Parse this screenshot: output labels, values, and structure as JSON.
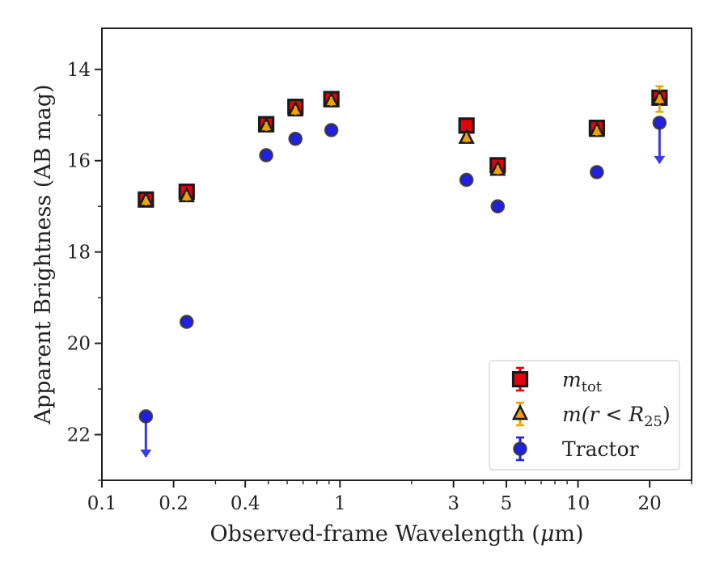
{
  "chart_data": {
    "type": "scatter",
    "xlabel": "Observed-frame Wavelength (μm)",
    "xlabel_parts": {
      "before": "Observed-frame Wavelength (",
      "mu": "μ",
      "after": "m)"
    },
    "ylabel": "Apparent Brightness (AB mag)",
    "xscale": "log",
    "xlim": [
      0.1,
      30
    ],
    "ylim": [
      23.0,
      13.1
    ],
    "y_inverted": true,
    "grid": false,
    "legend_position": "lower right",
    "x_ticks": [
      {
        "value": 0.1,
        "label": "0.1"
      },
      {
        "value": 0.2,
        "label": "0.2"
      },
      {
        "value": 0.4,
        "label": "0.4"
      },
      {
        "value": 1,
        "label": "1"
      },
      {
        "value": 3,
        "label": "3"
      },
      {
        "value": 5,
        "label": "5"
      },
      {
        "value": 10,
        "label": "10"
      },
      {
        "value": 20,
        "label": "20"
      }
    ],
    "y_ticks": [
      {
        "value": 14,
        "label": "14"
      },
      {
        "value": 16,
        "label": "16"
      },
      {
        "value": 18,
        "label": "18"
      },
      {
        "value": 20,
        "label": "20"
      },
      {
        "value": 22,
        "label": "22"
      }
    ],
    "series": [
      {
        "name": "m_tot",
        "legend": {
          "main": "m",
          "sub": "tot"
        },
        "marker": "square",
        "color": "#e8000b",
        "edge_color": "#1a1a1a",
        "points": [
          {
            "x": 0.153,
            "y": 16.85,
            "err": 0.05
          },
          {
            "x": 0.227,
            "y": 16.68,
            "err": 0.05
          },
          {
            "x": 0.49,
            "y": 15.2,
            "err": 0.05
          },
          {
            "x": 0.65,
            "y": 14.82,
            "err": 0.05
          },
          {
            "x": 0.92,
            "y": 14.65,
            "err": 0.05
          },
          {
            "x": 3.4,
            "y": 15.23,
            "err": 0.05
          },
          {
            "x": 4.6,
            "y": 16.1,
            "err": 0.05
          },
          {
            "x": 12.0,
            "y": 15.28,
            "err": 0.05
          },
          {
            "x": 22.0,
            "y": 14.62,
            "err": 0.05
          }
        ]
      },
      {
        "name": "m(r<R25)",
        "legend": {
          "prefix": "m(r < R",
          "sub": "25",
          "suffix": ")"
        },
        "marker": "triangle",
        "color": "#f0a202",
        "edge_color": "#1a1a1a",
        "points": [
          {
            "x": 0.153,
            "y": 16.88,
            "err": 0.04
          },
          {
            "x": 0.227,
            "y": 16.78,
            "err": 0.04
          },
          {
            "x": 0.49,
            "y": 15.25,
            "err": 0.04
          },
          {
            "x": 0.65,
            "y": 14.9,
            "err": 0.04
          },
          {
            "x": 0.92,
            "y": 14.7,
            "err": 0.04
          },
          {
            "x": 3.4,
            "y": 15.5,
            "err": 0.04
          },
          {
            "x": 4.6,
            "y": 16.2,
            "err": 0.04
          },
          {
            "x": 12.0,
            "y": 15.35,
            "err": 0.04
          },
          {
            "x": 22.0,
            "y": 14.65,
            "err": 0.28
          }
        ]
      },
      {
        "name": "Tractor",
        "legend": {
          "main": "Tractor"
        },
        "marker": "circle",
        "color": "#1f1fe6",
        "edge_color": "#333333",
        "upper_limit_color": "#3a3ae8",
        "points": [
          {
            "x": 0.153,
            "y": 21.6,
            "err": 0.05,
            "upper_limit": true
          },
          {
            "x": 0.227,
            "y": 19.53,
            "err": 0.05
          },
          {
            "x": 0.49,
            "y": 15.88,
            "err": 0.05
          },
          {
            "x": 0.65,
            "y": 15.52,
            "err": 0.05
          },
          {
            "x": 0.92,
            "y": 15.33,
            "err": 0.05
          },
          {
            "x": 3.4,
            "y": 16.42,
            "err": 0.05
          },
          {
            "x": 4.6,
            "y": 17.0,
            "err": 0.05
          },
          {
            "x": 12.0,
            "y": 16.25,
            "err": 0.05
          },
          {
            "x": 22.0,
            "y": 15.17,
            "err": 0.05,
            "upper_limit": true
          }
        ]
      }
    ]
  }
}
